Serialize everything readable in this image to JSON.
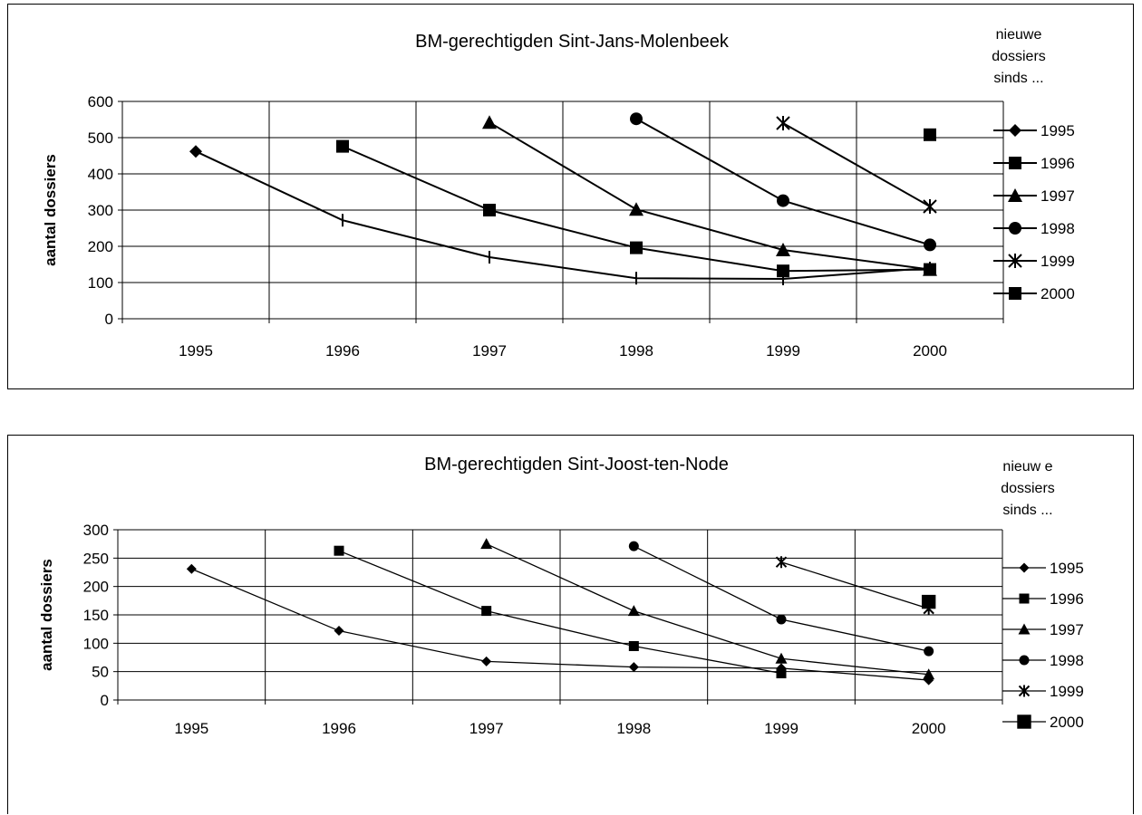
{
  "chart_data": [
    {
      "type": "line",
      "title": "BM-gerechtigden Sint-Jans-Molenbeek",
      "xlabel": "",
      "ylabel": "aantal dossiers",
      "categories": [
        "1995",
        "1996",
        "1997",
        "1998",
        "1999",
        "2000"
      ],
      "ylim": [
        0,
        600
      ],
      "yticks": [
        0,
        100,
        200,
        300,
        400,
        500,
        600
      ],
      "grid": true,
      "legend_position": "right",
      "legend_title": [
        "nieuwe",
        "dossiers",
        "sinds ..."
      ],
      "series": [
        {
          "name": "1995",
          "marker": "diamond",
          "values": [
            462,
            272,
            170,
            112,
            110,
            140
          ]
        },
        {
          "name": "1996",
          "marker": "square",
          "values": [
            null,
            476,
            300,
            196,
            132,
            136
          ]
        },
        {
          "name": "1997",
          "marker": "triangle",
          "values": [
            null,
            null,
            542,
            302,
            190,
            136
          ]
        },
        {
          "name": "1998",
          "marker": "circle",
          "values": [
            null,
            null,
            null,
            552,
            326,
            204
          ]
        },
        {
          "name": "1999",
          "marker": "star",
          "values": [
            null,
            null,
            null,
            null,
            540,
            310
          ]
        },
        {
          "name": "2000",
          "marker": "square",
          "values": [
            null,
            null,
            null,
            null,
            null,
            508
          ]
        }
      ],
      "markers_on_1995_from_1996": "dash"
    },
    {
      "type": "line",
      "title": "BM-gerechtigden Sint-Joost-ten-Node",
      "xlabel": "",
      "ylabel": "aantal dossiers",
      "categories": [
        "1995",
        "1996",
        "1997",
        "1998",
        "1999",
        "2000"
      ],
      "ylim": [
        0,
        300
      ],
      "yticks": [
        0,
        50,
        100,
        150,
        200,
        250,
        300
      ],
      "grid": true,
      "legend_position": "right",
      "legend_title": [
        "nieuw e",
        "dossiers",
        "sinds ..."
      ],
      "series": [
        {
          "name": "1995",
          "marker": "diamond",
          "values": [
            231,
            122,
            68,
            58,
            56,
            35
          ]
        },
        {
          "name": "1996",
          "marker": "square",
          "values": [
            null,
            263,
            157,
            95,
            47,
            null
          ]
        },
        {
          "name": "1997",
          "marker": "triangle",
          "values": [
            null,
            null,
            275,
            157,
            73,
            45
          ]
        },
        {
          "name": "1998",
          "marker": "circle",
          "values": [
            null,
            null,
            null,
            271,
            142,
            86
          ]
        },
        {
          "name": "1999",
          "marker": "star",
          "values": [
            null,
            null,
            null,
            null,
            243,
            161
          ]
        },
        {
          "name": "2000",
          "marker": "square-large",
          "values": [
            null,
            null,
            null,
            null,
            null,
            173
          ]
        }
      ]
    }
  ]
}
